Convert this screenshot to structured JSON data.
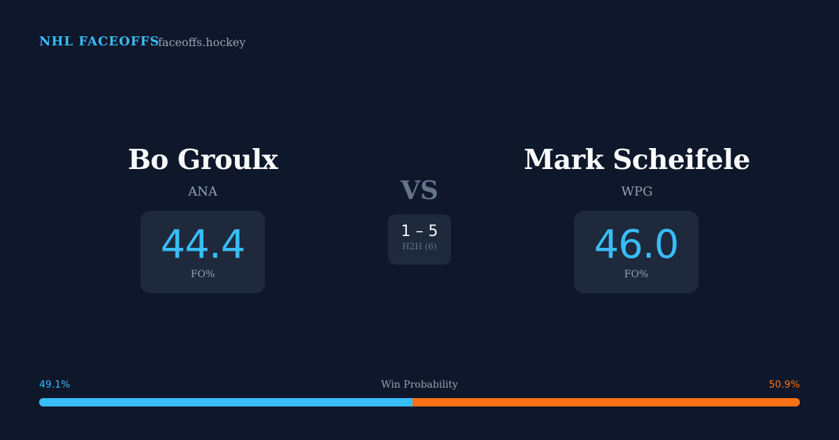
{
  "header": {
    "brand": "NHL FACEOFFS",
    "domain": "faceoffs.hockey"
  },
  "left": {
    "name": "Bo Groulx",
    "team": "ANA",
    "fo_pct": "44.4",
    "fo_label": "FO%"
  },
  "right": {
    "name": "Mark Scheifele",
    "team": "WPG",
    "fo_pct": "46.0",
    "fo_label": "FO%"
  },
  "center": {
    "vs": "VS",
    "score": "1 – 5",
    "h2h": "H2H (6)"
  },
  "win_probability": {
    "label": "Win Probability",
    "left_pct": "49.1%",
    "right_pct": "50.9%",
    "left_value": 49.1,
    "left_color": "#38bdf8",
    "right_color": "#f97316"
  }
}
